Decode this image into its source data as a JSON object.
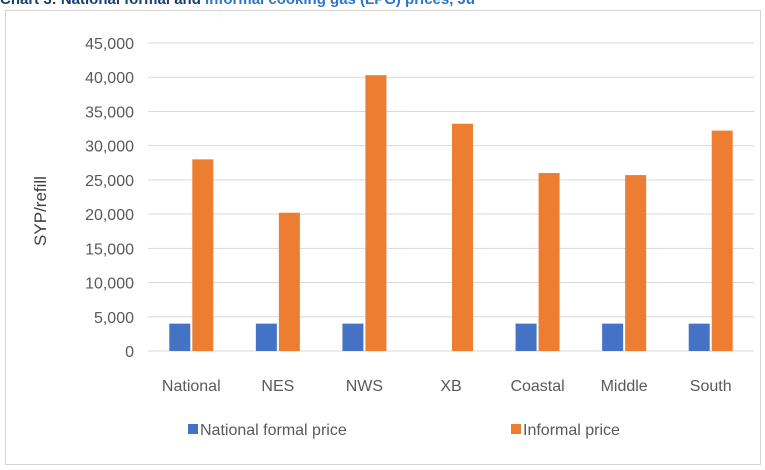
{
  "header": {
    "fragment_dark": "Chart 3: National formal and",
    "fragment_light": "informal cooking gas (LPG) prices, Ju"
  },
  "colors": {
    "formal": "#4472c4",
    "informal": "#ed7d31",
    "grid": "#d9d9d9",
    "text": "#595959"
  },
  "chart_data": {
    "type": "bar",
    "title": "",
    "xlabel": "",
    "ylabel": "SYP/refill",
    "ylim": [
      0,
      45000
    ],
    "yticks": [
      "0",
      "5,000",
      "10,000",
      "15,000",
      "20,000",
      "25,000",
      "30,000",
      "35,000",
      "40,000",
      "45,000"
    ],
    "grid": true,
    "legend_position": "bottom",
    "categories": [
      "National",
      "NES",
      "NWS",
      "XB",
      "Coastal",
      "Middle",
      "South"
    ],
    "series": [
      {
        "name": "National formal price",
        "values": [
          4000,
          4000,
          4000,
          null,
          4000,
          4000,
          4000
        ]
      },
      {
        "name": "Informal price",
        "values": [
          28000,
          20200,
          40300,
          33200,
          26000,
          25700,
          32200
        ]
      }
    ]
  }
}
